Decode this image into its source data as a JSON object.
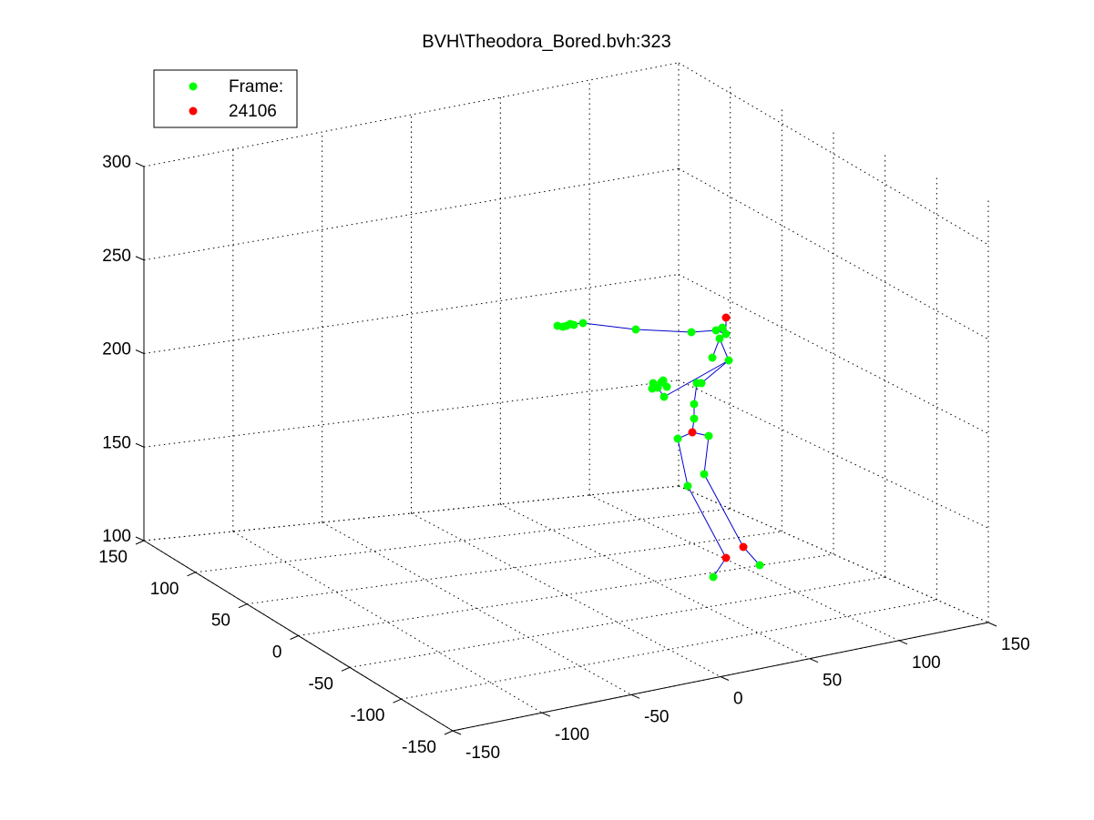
{
  "chart_data": {
    "type": "scatter",
    "title": "BVH\\Theodora_Bored.bvh:323",
    "xlabel": "",
    "ylabel": "",
    "zlabel": "",
    "xlim": [
      -150,
      150
    ],
    "ylim": [
      -150,
      150
    ],
    "zlim": [
      100,
      300
    ],
    "x_ticks": [
      "-150",
      "-100",
      "-50",
      "0",
      "50",
      "100",
      "150"
    ],
    "y_ticks": [
      "150",
      "100",
      "50",
      "0",
      "-50",
      "-100",
      "-150"
    ],
    "z_ticks": [
      "100",
      "150",
      "200",
      "250",
      "300"
    ],
    "grid": true,
    "legend_position": "top-left",
    "legend": [
      {
        "label": "Frame:",
        "color": "#00ff00"
      },
      {
        "label": "24106",
        "color": "#ff0000"
      }
    ],
    "colors": {
      "joints": "#00ff00",
      "highlight": "#ff0000",
      "bones": "#0000cc"
    },
    "series": [
      {
        "name": "Frame:",
        "color": "#00ff00",
        "points": [
          [
            762,
            460
          ],
          [
            762,
            444
          ],
          [
            765,
            421
          ],
          [
            770,
            421
          ],
          [
            782,
            393
          ],
          [
            800,
            396
          ],
          [
            790,
            372
          ],
          [
            797,
            367
          ],
          [
            793,
            360
          ],
          [
            786,
            363
          ],
          [
            759,
            365
          ],
          [
            698,
            362
          ],
          [
            640,
            355
          ],
          [
            630,
            357
          ],
          [
            622,
            358
          ],
          [
            612,
            358
          ],
          [
            618,
            359
          ],
          [
            626,
            356
          ],
          [
            729,
            436
          ],
          [
            722,
            426
          ],
          [
            717,
            421
          ],
          [
            716,
            427
          ],
          [
            726,
            420
          ],
          [
            732,
            425
          ],
          [
            728,
            418
          ],
          [
            744,
            482
          ],
          [
            755,
            534
          ],
          [
            778,
            479
          ],
          [
            773,
            521
          ],
          [
            783,
            634
          ],
          [
            834,
            621
          ]
        ]
      },
      {
        "name": "24106",
        "color": "#ff0000",
        "points": [
          [
            797,
            349
          ],
          [
            760,
            475
          ],
          [
            797,
            613
          ],
          [
            816,
            601
          ]
        ]
      }
    ]
  }
}
